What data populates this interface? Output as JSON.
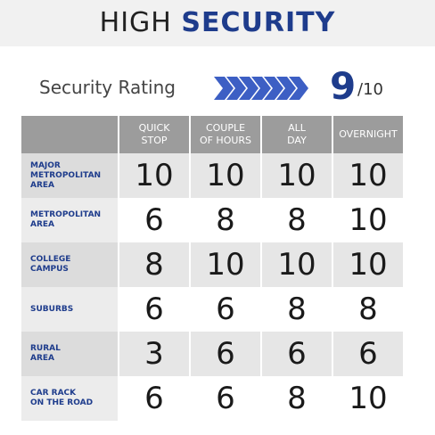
{
  "header": {
    "title_light": "HIGH",
    "title_bold": "SECURITY"
  },
  "rating": {
    "label": "Security Rating",
    "score": "9",
    "max": "/10"
  },
  "table": {
    "columns": [
      "QUICK\nSTOP",
      "COUPLE\nOF HOURS",
      "ALL\nDAY",
      "OVERNIGHT"
    ],
    "rows": [
      {
        "label": "MAJOR\nMETROPOLITAN\nAREA",
        "values": [
          10,
          10,
          10,
          10
        ]
      },
      {
        "label": "METROPOLITAN\nAREA",
        "values": [
          6,
          8,
          8,
          10
        ]
      },
      {
        "label": "COLLEGE\nCAMPUS",
        "values": [
          8,
          10,
          10,
          10
        ]
      },
      {
        "label": "SUBURBS",
        "values": [
          6,
          6,
          8,
          8
        ]
      },
      {
        "label": "RURAL\nAREA",
        "values": [
          3,
          6,
          6,
          6
        ]
      },
      {
        "label": "CAR RACK\nON THE ROAD",
        "values": [
          6,
          6,
          8,
          10
        ]
      }
    ]
  }
}
